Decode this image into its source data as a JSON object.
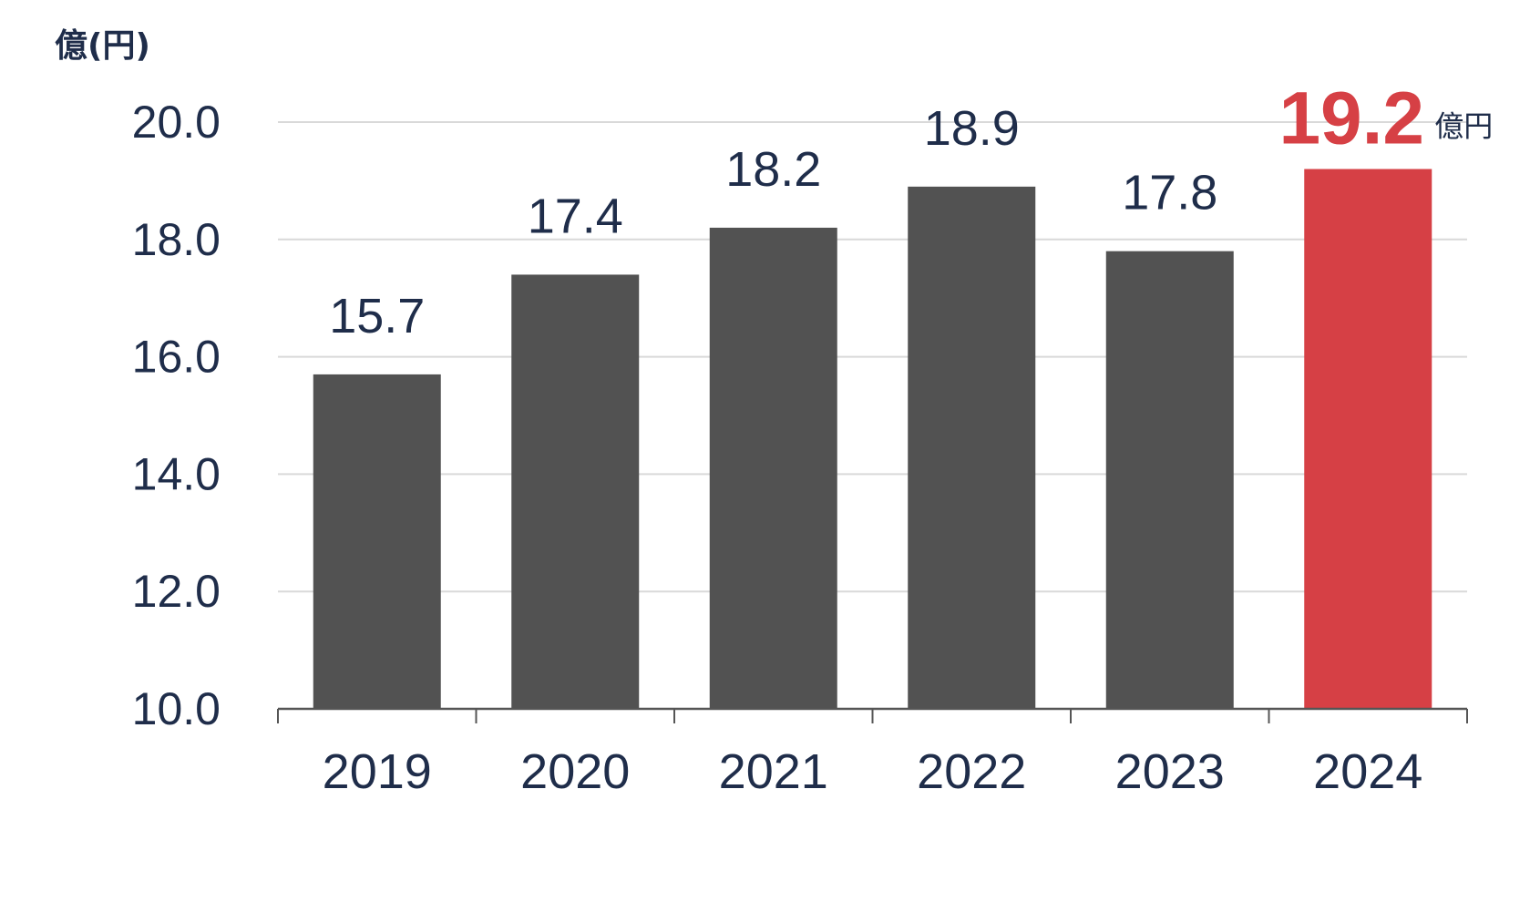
{
  "chart_data": {
    "type": "bar",
    "unit_label": "億(円)",
    "categories": [
      "2019",
      "2020",
      "2021",
      "2022",
      "2023",
      "2024"
    ],
    "values": [
      15.7,
      17.4,
      18.2,
      18.9,
      17.8,
      19.2
    ],
    "data_labels": [
      "15.7",
      "17.4",
      "18.2",
      "18.9",
      "17.8",
      "19.2"
    ],
    "highlight_index": 5,
    "highlight_suffix": "億円",
    "y_ticks": [
      "10.0",
      "12.0",
      "14.0",
      "16.0",
      "18.0",
      "20.0"
    ],
    "ylim": [
      10,
      20
    ],
    "grid": true,
    "legend": "none",
    "colors": {
      "bar": "#525252",
      "highlight": "#d64045",
      "grid": "#d9d9d9",
      "axis": "#555555",
      "text": "#1f2d4a"
    }
  }
}
